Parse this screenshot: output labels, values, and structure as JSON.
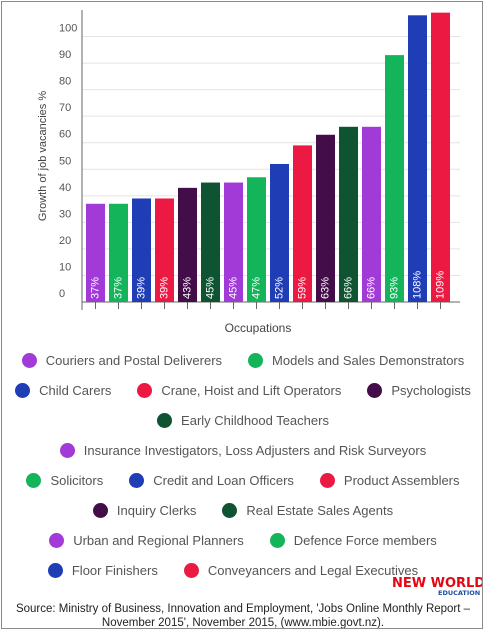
{
  "chart_data": {
    "type": "bar",
    "xlabel": "Occupations",
    "ylabel": "Growth of job vacancies %",
    "ylim": [
      0,
      110
    ],
    "yticks": [
      0,
      10,
      20,
      30,
      40,
      50,
      60,
      70,
      80,
      90,
      100
    ],
    "grid": true,
    "categories": [
      "Couriers and Postal Deliverers",
      "Models and Sales Demonstrators",
      "Child Carers",
      "Crane, Hoist and Lift Operators",
      "Psychologists",
      "Early Childhood Teachers",
      "Insurance Investigators, Loss Adjusters and Risk Surveyors",
      "Solicitors",
      "Credit and Loan Officers",
      "Product Assemblers",
      "Inquiry Clerks",
      "Real Estate Sales Agents",
      "Urban and Regional Planners",
      "Defence Force members",
      "Floor Finishers",
      "Conveyancers and Legal Executives"
    ],
    "values": [
      37,
      37,
      39,
      39,
      43,
      45,
      45,
      47,
      52,
      59,
      63,
      66,
      66,
      93,
      108,
      109
    ],
    "data_labels": [
      "37%",
      "37%",
      "39%",
      "39%",
      "43%",
      "45%",
      "45%",
      "47%",
      "52%",
      "59%",
      "63%",
      "66%",
      "66%",
      "93%",
      "108%",
      "109%"
    ],
    "colors": [
      "#a23ad8",
      "#13b45a",
      "#1f3db4",
      "#ec1a42",
      "#420d48",
      "#0e5332",
      "#a23ad8",
      "#13b45a",
      "#1f3db4",
      "#ec1a42",
      "#420d48",
      "#0e5332",
      "#a23ad8",
      "#13b45a",
      "#1f3db4",
      "#ec1a42"
    ]
  },
  "legend_rows": [
    [
      0,
      1
    ],
    [
      2,
      3,
      4
    ],
    [
      5
    ],
    [
      6
    ],
    [
      7,
      8,
      9
    ],
    [
      10,
      11
    ],
    [
      12,
      13
    ],
    [
      14,
      15
    ]
  ],
  "source": "Source: Ministry of Business, Innovation and Employment, 'Jobs Online Monthly Report – November 2015', November 2015, (www.mbie.govt.nz).",
  "logo": {
    "line1": "NEW WORLD",
    "line2": "EDUCATION",
    "colors": {
      "red": "#e30613",
      "blue": "#1e4ea1"
    }
  }
}
